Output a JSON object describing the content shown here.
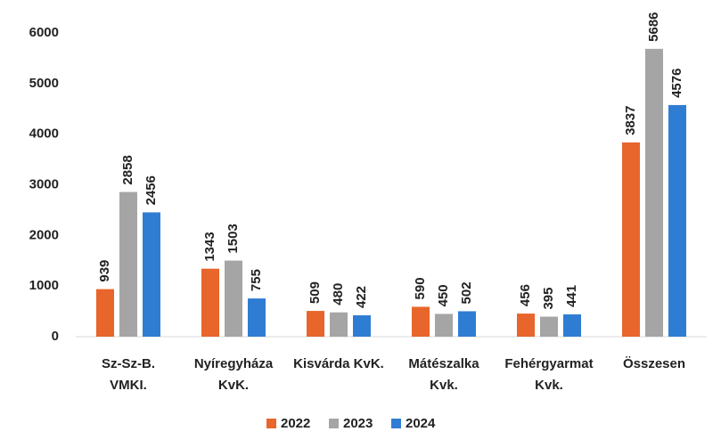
{
  "chart_data": {
    "type": "bar",
    "categories": [
      [
        "Sz-Sz-B.",
        "VMKI."
      ],
      [
        "Nyíregyháza",
        "KvK."
      ],
      [
        "Kisvárda KvK."
      ],
      [
        "Mátészalka",
        "Kvk."
      ],
      [
        "Fehérgyarmat",
        "Kvk."
      ],
      [
        "Összesen"
      ]
    ],
    "series": [
      {
        "name": "2022",
        "color": "#e8652b",
        "values": [
          939,
          1343,
          509,
          590,
          456,
          3837
        ]
      },
      {
        "name": "2023",
        "color": "#a5a5a5",
        "values": [
          2858,
          1503,
          480,
          450,
          395,
          5686
        ]
      },
      {
        "name": "2024",
        "color": "#2f7dd3",
        "values": [
          2456,
          755,
          422,
          502,
          441,
          4576
        ]
      }
    ],
    "ylim": [
      0,
      6000
    ],
    "yticks": [
      0,
      1000,
      2000,
      3000,
      4000,
      5000,
      6000
    ],
    "grid": false,
    "legend": "bottom"
  }
}
